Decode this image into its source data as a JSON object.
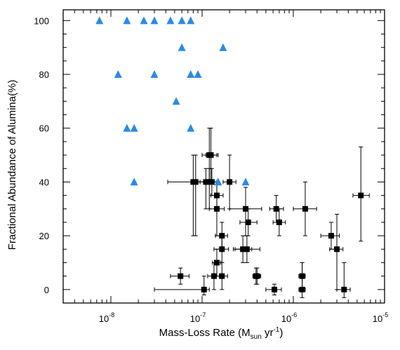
{
  "chart_data": {
    "type": "scatter",
    "xlabel": {
      "main": "Mass-Loss Rate (M",
      "sub": "sun",
      "mid": " yr",
      "sup": "-1",
      "end": ")"
    },
    "ylabel": "Fractional Abundance of Alumina(%)",
    "x_scale": "log",
    "xlim": [
      3e-09,
      1e-05
    ],
    "ylim": [
      -5,
      104
    ],
    "x_tick_labels": [
      {
        "value": 1e-08,
        "base": "10",
        "exp": "-8"
      },
      {
        "value": 1e-07,
        "base": "10",
        "exp": "-7"
      },
      {
        "value": 1e-06,
        "base": "10",
        "exp": "-6"
      },
      {
        "value": 1e-05,
        "base": "10",
        "exp": "-5"
      }
    ],
    "y_ticks": [
      0,
      20,
      40,
      60,
      80,
      100
    ],
    "y_tick_labels": [
      "0",
      "20",
      "40",
      "60",
      "80",
      "100"
    ],
    "grid": false,
    "colors": {
      "triangles": "#2b8ae6",
      "squares": "#000000"
    },
    "series": [
      {
        "marker": "triangle",
        "points": [
          {
            "x": 7.5e-09,
            "y": 100
          },
          {
            "x": 1.5e-08,
            "y": 100
          },
          {
            "x": 2.3e-08,
            "y": 100
          },
          {
            "x": 3e-08,
            "y": 100
          },
          {
            "x": 4.5e-08,
            "y": 100
          },
          {
            "x": 6e-08,
            "y": 100
          },
          {
            "x": 7.5e-08,
            "y": 100
          },
          {
            "x": 6e-08,
            "y": 90
          },
          {
            "x": 1.7e-07,
            "y": 90
          },
          {
            "x": 1.2e-08,
            "y": 80
          },
          {
            "x": 3e-08,
            "y": 80
          },
          {
            "x": 7.5e-08,
            "y": 80
          },
          {
            "x": 9e-08,
            "y": 80
          },
          {
            "x": 5.2e-08,
            "y": 70
          },
          {
            "x": 1.5e-08,
            "y": 60
          },
          {
            "x": 1.8e-08,
            "y": 60
          },
          {
            "x": 7.5e-08,
            "y": 60
          },
          {
            "x": 1.8e-08,
            "y": 40
          },
          {
            "x": 1.5e-07,
            "y": 40
          },
          {
            "x": 3e-07,
            "y": 40
          }
        ]
      },
      {
        "marker": "square",
        "points": [
          {
            "x": 1.2e-07,
            "y": 50,
            "xlo": 1e-07,
            "xhi": 1.5e-07,
            "ylo": 40,
            "yhi": 60
          },
          {
            "x": 1.25e-07,
            "y": 50,
            "xlo": 1.1e-07,
            "xhi": 1.45e-07,
            "ylo": 40,
            "yhi": 60
          },
          {
            "x": 8e-08,
            "y": 40,
            "xlo": 4.2e-08,
            "xhi": 1.1e-07,
            "ylo": 20,
            "yhi": 50
          },
          {
            "x": 8.5e-08,
            "y": 40,
            "xlo": 7.8e-08,
            "xhi": 9.5e-08,
            "ylo": 20,
            "yhi": 50
          },
          {
            "x": 1.1e-07,
            "y": 40,
            "xlo": 9.5e-08,
            "xhi": 1.3e-07,
            "ylo": 30,
            "yhi": 45
          },
          {
            "x": 1.2e-07,
            "y": 40,
            "xlo": 1.05e-07,
            "xhi": 1.45e-07,
            "ylo": 30,
            "yhi": 45
          },
          {
            "x": 1.28e-07,
            "y": 40,
            "xlo": 1.1e-07,
            "xhi": 1.5e-07,
            "ylo": 35,
            "yhi": 45
          },
          {
            "x": 2e-07,
            "y": 40,
            "xlo": 1.7e-07,
            "xhi": 2.35e-07,
            "ylo": 30,
            "yhi": 50
          },
          {
            "x": 1.45e-07,
            "y": 35,
            "xlo": 1.25e-07,
            "xhi": 1.7e-07,
            "ylo": 30,
            "yhi": 40
          },
          {
            "x": 1.45e-07,
            "y": 30,
            "xlo": 1.2e-07,
            "xhi": 1.75e-07,
            "ylo": 20,
            "yhi": 40
          },
          {
            "x": 3e-07,
            "y": 30,
            "xlo": 2e-07,
            "xhi": 4.5e-07,
            "ylo": 20,
            "yhi": 38
          },
          {
            "x": 3.2e-07,
            "y": 25,
            "xlo": 2.6e-07,
            "xhi": 4e-07,
            "ylo": 20,
            "yhi": 30
          },
          {
            "x": 6.5e-07,
            "y": 30,
            "xlo": 5.5e-07,
            "xhi": 7.8e-07,
            "ylo": 25,
            "yhi": 35
          },
          {
            "x": 7e-07,
            "y": 25,
            "xlo": 6e-07,
            "xhi": 8.2e-07,
            "ylo": 20,
            "yhi": 30
          },
          {
            "x": 1.35e-06,
            "y": 30,
            "xlo": 1e-06,
            "xhi": 1.8e-06,
            "ylo": 20,
            "yhi": 40
          },
          {
            "x": 5.5e-06,
            "y": 35,
            "xlo": 4.5e-06,
            "xhi": 6.8e-06,
            "ylo": 18,
            "yhi": 53
          },
          {
            "x": 2.6e-06,
            "y": 20,
            "xlo": 2e-06,
            "xhi": 3.2e-06,
            "ylo": 15,
            "yhi": 25
          },
          {
            "x": 3e-06,
            "y": 15,
            "xlo": 2.5e-06,
            "xhi": 3.5e-06,
            "ylo": 0,
            "yhi": 28
          },
          {
            "x": 1.65e-07,
            "y": 20,
            "xlo": 1.4e-07,
            "xhi": 1.9e-07,
            "ylo": 15,
            "yhi": 25
          },
          {
            "x": 1.65e-07,
            "y": 15,
            "xlo": 1.35e-07,
            "xhi": 1.95e-07,
            "ylo": 10,
            "yhi": 20
          },
          {
            "x": 2.8e-07,
            "y": 15,
            "xlo": 2.2e-07,
            "xhi": 3.5e-07,
            "ylo": 10,
            "yhi": 20
          },
          {
            "x": 3.1e-07,
            "y": 15,
            "xlo": 2.3e-07,
            "xhi": 4.3e-07,
            "ylo": 10,
            "yhi": 20
          },
          {
            "x": 1.45e-07,
            "y": 10,
            "xlo": 1.3e-07,
            "xhi": 1.6e-07,
            "ylo": 5,
            "yhi": 15
          },
          {
            "x": 5.8e-08,
            "y": 5,
            "xlo": 4.5e-08,
            "xhi": 7.2e-08,
            "ylo": 2,
            "yhi": 8
          },
          {
            "x": 1.35e-07,
            "y": 5,
            "xlo": 1.15e-07,
            "xhi": 1.55e-07,
            "ylo": 0,
            "yhi": 10
          },
          {
            "x": 1.65e-07,
            "y": 5,
            "xlo": 1.4e-07,
            "xhi": 1.9e-07,
            "ylo": 0,
            "yhi": 10
          },
          {
            "x": 3.9e-07,
            "y": 5,
            "xlo": 3.6e-07,
            "xhi": 4.3e-07,
            "ylo": 2,
            "yhi": 8
          },
          {
            "x": 4e-07,
            "y": 5,
            "xlo": 3.7e-07,
            "xhi": 4.4e-07,
            "ylo": 2,
            "yhi": 8
          },
          {
            "x": 1.05e-07,
            "y": 0,
            "xlo": 3e-08,
            "xhi": 1.2e-07,
            "ylo": -2,
            "yhi": 5
          },
          {
            "x": 6.2e-07,
            "y": 0,
            "xlo": 5e-07,
            "xhi": 7.4e-07,
            "ylo": -2,
            "yhi": 2
          },
          {
            "x": 1.25e-06,
            "y": 0,
            "xlo": 1.15e-06,
            "xhi": 1.35e-06,
            "ylo": -3,
            "yhi": 10
          },
          {
            "x": 1.25e-06,
            "y": 5,
            "xlo": 1.15e-06,
            "xhi": 1.35e-06,
            "ylo": 0,
            "yhi": 10
          },
          {
            "x": 3.6e-06,
            "y": 0,
            "xlo": 3e-06,
            "xhi": 4.2e-06,
            "ylo": -3,
            "yhi": 10
          }
        ]
      }
    ]
  }
}
